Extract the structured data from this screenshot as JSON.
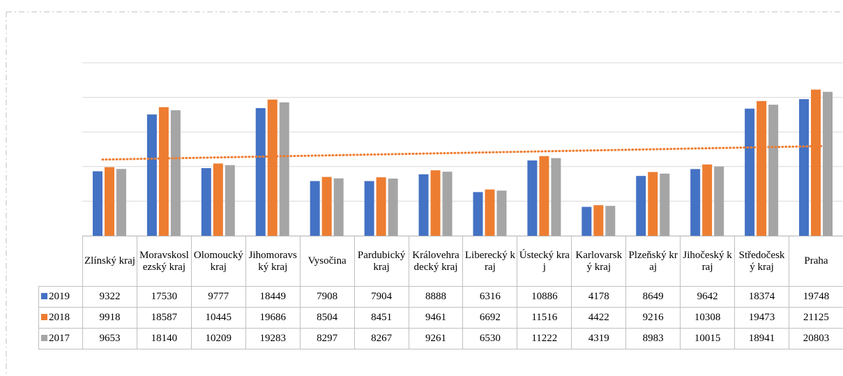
{
  "chart_data": {
    "type": "bar",
    "categories": [
      "Zlínský kraj",
      "Moravskoslezský kraj",
      "Olomoucký kraj",
      "Jihomoravský kraj",
      "Vysočina",
      "Pardubický kraj",
      "Královehradecký kraj",
      "Liberecký kraj",
      "Ústecký kraj",
      "Karlovarský kraj",
      "Plzeňský kraj",
      "Jihočeský kraj",
      "Středočeský kraj",
      "Praha"
    ],
    "series": [
      {
        "name": "2019",
        "color": "#4472c4",
        "values": [
          9322,
          17530,
          9777,
          18449,
          7908,
          7904,
          8888,
          6316,
          10886,
          4178,
          8649,
          9642,
          18374,
          19748
        ]
      },
      {
        "name": "2018",
        "color": "#ed7d31",
        "values": [
          9918,
          18587,
          10445,
          19686,
          8504,
          8451,
          9461,
          6692,
          11516,
          4422,
          9216,
          10308,
          19473,
          21125
        ],
        "trendline": "linear"
      },
      {
        "name": "2017",
        "color": "#a5a5a5",
        "values": [
          9653,
          18140,
          10209,
          19283,
          8297,
          8267,
          9261,
          6530,
          11222,
          4319,
          8983,
          10015,
          18941,
          20803
        ]
      }
    ],
    "ylim": [
      0,
      25000
    ],
    "yticks": [
      0,
      5000,
      10000,
      15000,
      20000,
      25000
    ],
    "grid": true,
    "data_table": true
  }
}
